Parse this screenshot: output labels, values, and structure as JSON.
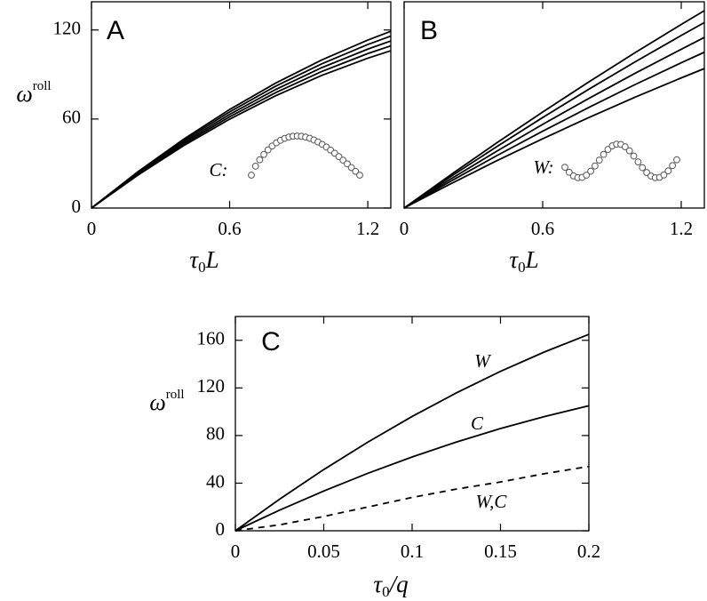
{
  "chart_data": [
    {
      "type": "line",
      "panel_label": "A",
      "y_label": "ω",
      "y_label_sup": "roll",
      "x_label": "τ",
      "x_label_sub": "0",
      "x_label_rest": "L",
      "annotation": "C:",
      "xlim": [
        0,
        1.3
      ],
      "ylim": [
        0,
        139
      ],
      "xticks": [
        0,
        0.6,
        1.2
      ],
      "yticks": [
        0,
        60,
        120
      ],
      "x": [
        0,
        0.2,
        0.4,
        0.6,
        0.8,
        1.0,
        1.2,
        1.3
      ],
      "series": [
        {
          "color": "#000000",
          "values": [
            0,
            24.3,
            46.4,
            66.4,
            84.2,
            99.8,
            113.2,
            119.1
          ]
        },
        {
          "color": "#000000",
          "values": [
            0,
            23.7,
            45.3,
            64.8,
            82.1,
            97.2,
            110.2,
            115.9
          ]
        },
        {
          "color": "#000000",
          "values": [
            0,
            23.2,
            44.2,
            63.1,
            79.9,
            94.6,
            107.1,
            112.6
          ]
        },
        {
          "color": "#000000",
          "values": [
            0,
            22.6,
            43.1,
            61.5,
            77.8,
            92.0,
            104.1,
            109.3
          ]
        },
        {
          "color": "#000000",
          "values": [
            0,
            22.0,
            42.0,
            59.9,
            75.7,
            89.4,
            101.0,
            106.0
          ]
        }
      ]
    },
    {
      "type": "line",
      "panel_label": "B",
      "x_label": "τ",
      "x_label_sub": "0",
      "x_label_rest": "L",
      "annotation": "W:",
      "xlim": [
        0,
        1.3
      ],
      "ylim": [
        0,
        139
      ],
      "xticks": [
        0,
        0.6,
        1.2
      ],
      "x": [
        0,
        0.2,
        0.4,
        0.6,
        0.8,
        1.0,
        1.2,
        1.3
      ],
      "series": [
        {
          "color": "#000000",
          "values": [
            0,
            22.2,
            43.8,
            64.7,
            85.0,
            104.7,
            123.7,
            133.0
          ]
        },
        {
          "color": "#000000",
          "values": [
            0,
            21.0,
            41.3,
            61.0,
            80.1,
            98.5,
            116.3,
            125.0
          ]
        },
        {
          "color": "#000000",
          "values": [
            0,
            19.4,
            38.2,
            56.4,
            73.9,
            90.8,
            107.0,
            115.0
          ]
        },
        {
          "color": "#000000",
          "values": [
            0,
            17.9,
            35.2,
            51.8,
            67.8,
            83.2,
            97.9,
            105.0
          ]
        },
        {
          "color": "#000000",
          "values": [
            0,
            16.2,
            31.8,
            46.7,
            61.0,
            74.7,
            87.7,
            94.0
          ]
        }
      ]
    },
    {
      "type": "line",
      "panel_label": "C",
      "y_label": "ω",
      "y_label_sup": "roll",
      "x_label": "τ",
      "x_label_sub": "0",
      "x_label_rest": "/q",
      "xlim": [
        0,
        0.2
      ],
      "ylim": [
        0,
        180
      ],
      "xticks": [
        0,
        0.05,
        0.1,
        0.15,
        0.2
      ],
      "yticks": [
        0,
        40,
        80,
        120,
        160
      ],
      "x": [
        0,
        0.025,
        0.05,
        0.075,
        0.1,
        0.125,
        0.15,
        0.175,
        0.2
      ],
      "series": [
        {
          "name": "W",
          "color": "#000000",
          "values": [
            0,
            26.5,
            51.4,
            74.5,
            96,
            115.8,
            133.9,
            150.3,
            165
          ]
        },
        {
          "name": "C",
          "color": "#000000",
          "values": [
            0,
            17.3,
            33.4,
            48.3,
            62,
            74.5,
            85.9,
            96.0,
            105
          ]
        },
        {
          "name": "W,C",
          "color": "#000000",
          "dash": true,
          "values": [
            0,
            5,
            12,
            20,
            28,
            35,
            41,
            48,
            54
          ]
        }
      ]
    }
  ]
}
